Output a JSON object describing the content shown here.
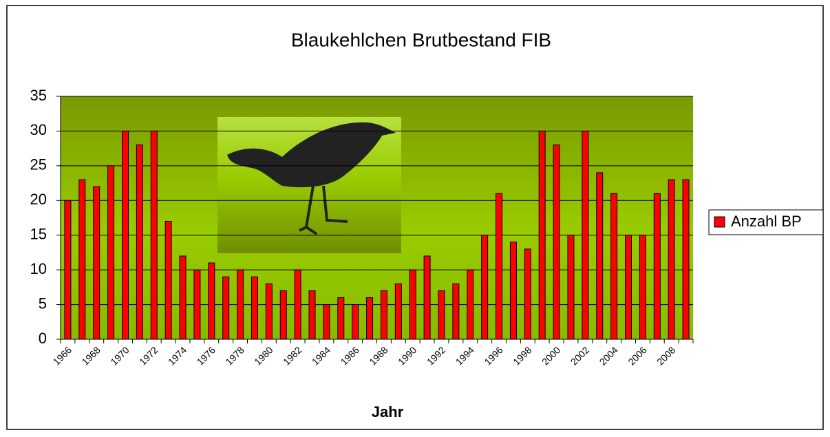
{
  "chart_data": {
    "type": "bar",
    "title": "Blaukehlchen Brutbestand FIB",
    "x_label": "Jahr",
    "categories": [
      "1966",
      null,
      "1968",
      null,
      "1970",
      null,
      "1972",
      null,
      "1974",
      null,
      "1976",
      null,
      "1978",
      null,
      "1980",
      null,
      "1982",
      null,
      "1984",
      null,
      "1986",
      null,
      "1988",
      null,
      "1990",
      null,
      "1992",
      null,
      "1994",
      null,
      "1996",
      null,
      "1998",
      null,
      "2000",
      null,
      "2002",
      null,
      "2004",
      null,
      "2006",
      null,
      "2008",
      null
    ],
    "series": [
      {
        "name": "Anzahl BP",
        "color": "#ff0000",
        "values": [
          20,
          23,
          22,
          25,
          30,
          28,
          30,
          17,
          12,
          10,
          11,
          9,
          10,
          9,
          8,
          7,
          10,
          7,
          5,
          6,
          5,
          6,
          7,
          8,
          10,
          12,
          7,
          8,
          10,
          15,
          21,
          14,
          13,
          30,
          28,
          15,
          30,
          24,
          21,
          15,
          15,
          21,
          23,
          23
        ]
      }
    ],
    "ylim": [
      0,
      35
    ],
    "yticks": [
      0,
      5,
      10,
      15,
      20,
      25,
      30,
      35
    ],
    "grid": true,
    "legend": "right"
  }
}
